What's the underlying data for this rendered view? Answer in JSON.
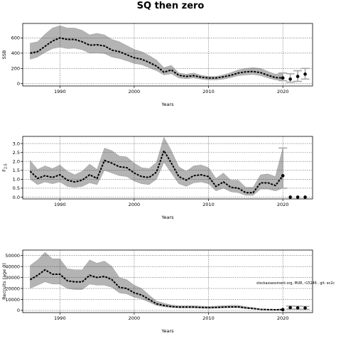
{
  "title": "SQ then zero",
  "note": "stockassessment.org, MUR, r15246 , git: ec2c",
  "chart_data": [
    {
      "type": "line",
      "ylabel": "SSB",
      "xlabel": "Years",
      "xlim": [
        1985,
        2024
      ],
      "ylim": [
        -30,
        790
      ],
      "xticks": [
        1990,
        2000,
        2010,
        2020
      ],
      "yticks": [
        0,
        200,
        400,
        600
      ],
      "grid": true,
      "x": [
        1986,
        1987,
        1988,
        1989,
        1990,
        1991,
        1992,
        1993,
        1994,
        1995,
        1996,
        1997,
        1998,
        1999,
        2000,
        2001,
        2002,
        2003,
        2004,
        2005,
        2006,
        2007,
        2008,
        2009,
        2010,
        2011,
        2012,
        2013,
        2014,
        2015,
        2016,
        2017,
        2018,
        2019,
        2020
      ],
      "mean": [
        400,
        420,
        490,
        560,
        600,
        580,
        580,
        550,
        505,
        510,
        495,
        440,
        420,
        380,
        340,
        320,
        280,
        230,
        150,
        180,
        110,
        95,
        105,
        85,
        75,
        75,
        90,
        110,
        140,
        155,
        160,
        145,
        110,
        80,
        75
      ],
      "lower": [
        320,
        350,
        410,
        460,
        480,
        460,
        465,
        445,
        400,
        405,
        395,
        350,
        330,
        300,
        265,
        250,
        210,
        170,
        115,
        130,
        75,
        65,
        75,
        60,
        50,
        50,
        60,
        80,
        105,
        115,
        120,
        105,
        75,
        50,
        40
      ],
      "upper": [
        530,
        550,
        650,
        730,
        760,
        730,
        730,
        700,
        640,
        660,
        640,
        580,
        550,
        500,
        450,
        420,
        370,
        310,
        210,
        240,
        140,
        125,
        140,
        110,
        95,
        95,
        115,
        145,
        180,
        200,
        210,
        200,
        160,
        125,
        140
      ],
      "points": [
        {
          "x": 2020,
          "y": 75
        },
        {
          "x": 2021,
          "y": 60
        },
        {
          "x": 2022,
          "y": 95
        },
        {
          "x": 2023,
          "y": 125
        }
      ],
      "errorbars": [
        {
          "x": 2020,
          "lo": 40,
          "hi": 140
        },
        {
          "x": 2021,
          "lo": 20,
          "hi": 130
        },
        {
          "x": 2022,
          "lo": 30,
          "hi": 170
        },
        {
          "x": 2023,
          "lo": 60,
          "hi": 200
        }
      ]
    },
    {
      "type": "line",
      "ylabel": "F2-5",
      "ylabel_main": "F",
      "ylabel_sub": "2-5",
      "xlabel": "Years",
      "xlim": [
        1985,
        2024
      ],
      "ylim": [
        -0.1,
        3.4
      ],
      "xticks": [
        1990,
        2000,
        2010,
        2020
      ],
      "yticks": [
        0.0,
        0.5,
        1.0,
        1.5,
        2.0,
        2.5,
        3.0
      ],
      "ytick_labels": [
        "0.0",
        "0.5",
        "1.0",
        "1.5",
        "2.0",
        "2.5",
        "3.0"
      ],
      "grid": true,
      "x": [
        1986,
        1987,
        1988,
        1989,
        1990,
        1991,
        1992,
        1993,
        1994,
        1995,
        1996,
        1997,
        1998,
        1999,
        2000,
        2001,
        2002,
        2003,
        2004,
        2005,
        2006,
        2007,
        2008,
        2009,
        2010,
        2011,
        2012,
        2013,
        2014,
        2015,
        2016,
        2017,
        2018,
        2019,
        2020
      ],
      "mean": [
        1.45,
        1.05,
        1.2,
        1.1,
        1.25,
        0.95,
        0.85,
        0.95,
        1.25,
        1.05,
        2.05,
        1.9,
        1.7,
        1.65,
        1.35,
        1.15,
        1.1,
        1.4,
        2.6,
        1.9,
        1.15,
        0.95,
        1.2,
        1.25,
        1.15,
        0.6,
        0.85,
        0.55,
        0.5,
        0.25,
        0.25,
        0.8,
        0.8,
        0.65,
        1.2
      ],
      "lower": [
        1.0,
        0.7,
        0.85,
        0.75,
        0.85,
        0.6,
        0.55,
        0.6,
        0.8,
        0.7,
        1.5,
        1.35,
        1.2,
        1.15,
        0.9,
        0.75,
        0.7,
        1.0,
        1.95,
        1.35,
        0.75,
        0.6,
        0.8,
        0.85,
        0.75,
        0.35,
        0.5,
        0.3,
        0.25,
        0.1,
        0.1,
        0.45,
        0.45,
        0.35,
        0.5
      ],
      "upper": [
        2.05,
        1.55,
        1.75,
        1.6,
        1.8,
        1.45,
        1.25,
        1.45,
        1.85,
        1.55,
        2.75,
        2.6,
        2.3,
        2.25,
        1.9,
        1.65,
        1.6,
        1.95,
        3.35,
        2.6,
        1.7,
        1.45,
        1.75,
        1.8,
        1.65,
        1.05,
        1.35,
        0.95,
        0.95,
        0.55,
        0.55,
        1.25,
        1.3,
        1.15,
        2.75
      ],
      "points": [
        {
          "x": 2020,
          "y": 1.2
        },
        {
          "x": 2021,
          "y": 0.0
        },
        {
          "x": 2022,
          "y": 0.0
        },
        {
          "x": 2023,
          "y": 0.0
        }
      ],
      "errorbars": [
        {
          "x": 2020,
          "lo": 0.5,
          "hi": 2.75
        }
      ]
    },
    {
      "type": "line",
      "ylabel": "Recruits (age 0)",
      "xlabel": "Years",
      "xlim": [
        1985,
        2024
      ],
      "ylim": [
        -2000,
        55000
      ],
      "xticks": [
        1990,
        2000,
        2010,
        2020
      ],
      "yticks": [
        0,
        10000,
        20000,
        30000,
        40000,
        50000
      ],
      "grid": true,
      "x": [
        1986,
        1987,
        1988,
        1989,
        1990,
        1991,
        1992,
        1993,
        1994,
        1995,
        1996,
        1997,
        1998,
        1999,
        2000,
        2001,
        2002,
        2003,
        2004,
        2005,
        2006,
        2007,
        2008,
        2009,
        2010,
        2011,
        2012,
        2013,
        2014,
        2015,
        2016,
        2017,
        2018,
        2019,
        2020
      ],
      "mean": [
        28000,
        32000,
        37000,
        33000,
        33000,
        27000,
        26000,
        26000,
        32000,
        30000,
        31000,
        28000,
        21000,
        20000,
        16000,
        14000,
        10000,
        6000,
        4500,
        3500,
        3000,
        3000,
        3000,
        2700,
        2500,
        2700,
        3000,
        3200,
        3200,
        2300,
        1700,
        900,
        700,
        600,
        700
      ],
      "lower": [
        20000,
        23000,
        26000,
        24000,
        24000,
        20000,
        19000,
        19000,
        24000,
        23000,
        23000,
        21000,
        16000,
        15000,
        12000,
        10500,
        7500,
        4500,
        3300,
        2600,
        2200,
        2200,
        2200,
        2000,
        1800,
        2000,
        2200,
        2400,
        2400,
        1700,
        1200,
        600,
        450,
        350,
        400
      ],
      "upper": [
        41000,
        46000,
        53000,
        47000,
        47000,
        38000,
        37000,
        37000,
        46000,
        43000,
        45000,
        40000,
        30000,
        28000,
        23000,
        20000,
        14000,
        8500,
        6500,
        5000,
        4300,
        4300,
        4300,
        3900,
        3600,
        3900,
        4300,
        4600,
        4600,
        3400,
        2500,
        1400,
        1100,
        1000,
        1300
      ],
      "points": [
        {
          "x": 2020,
          "y": 700
        },
        {
          "x": 2021,
          "y": 2500
        },
        {
          "x": 2022,
          "y": 2300
        },
        {
          "x": 2023,
          "y": 2200
        }
      ],
      "errorbars": [
        {
          "x": 2021,
          "lo": 1200,
          "hi": 4000
        },
        {
          "x": 2022,
          "lo": 1100,
          "hi": 3800
        },
        {
          "x": 2023,
          "lo": 1000,
          "hi": 3600
        }
      ]
    }
  ]
}
